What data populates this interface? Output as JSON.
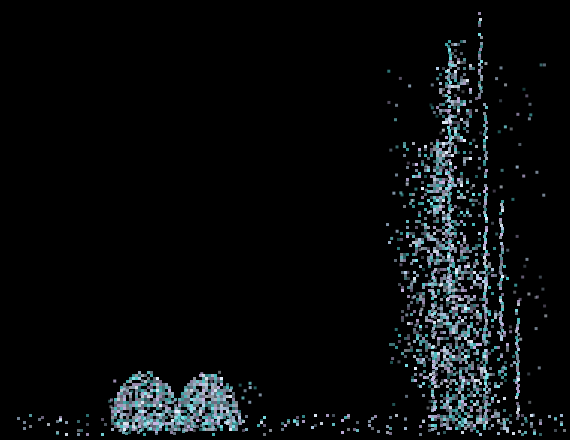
{
  "image": {
    "background_color": "#000000",
    "palette": {
      "cyan": "#7fe7ee",
      "pale_blue": "#b8d4f0",
      "lavender": "#c9b6e6",
      "white": "#e9f3ff",
      "teal": "#4fc7c9",
      "grey": "#9fb3c8"
    },
    "texture": "pixelated-noise-clusters"
  }
}
